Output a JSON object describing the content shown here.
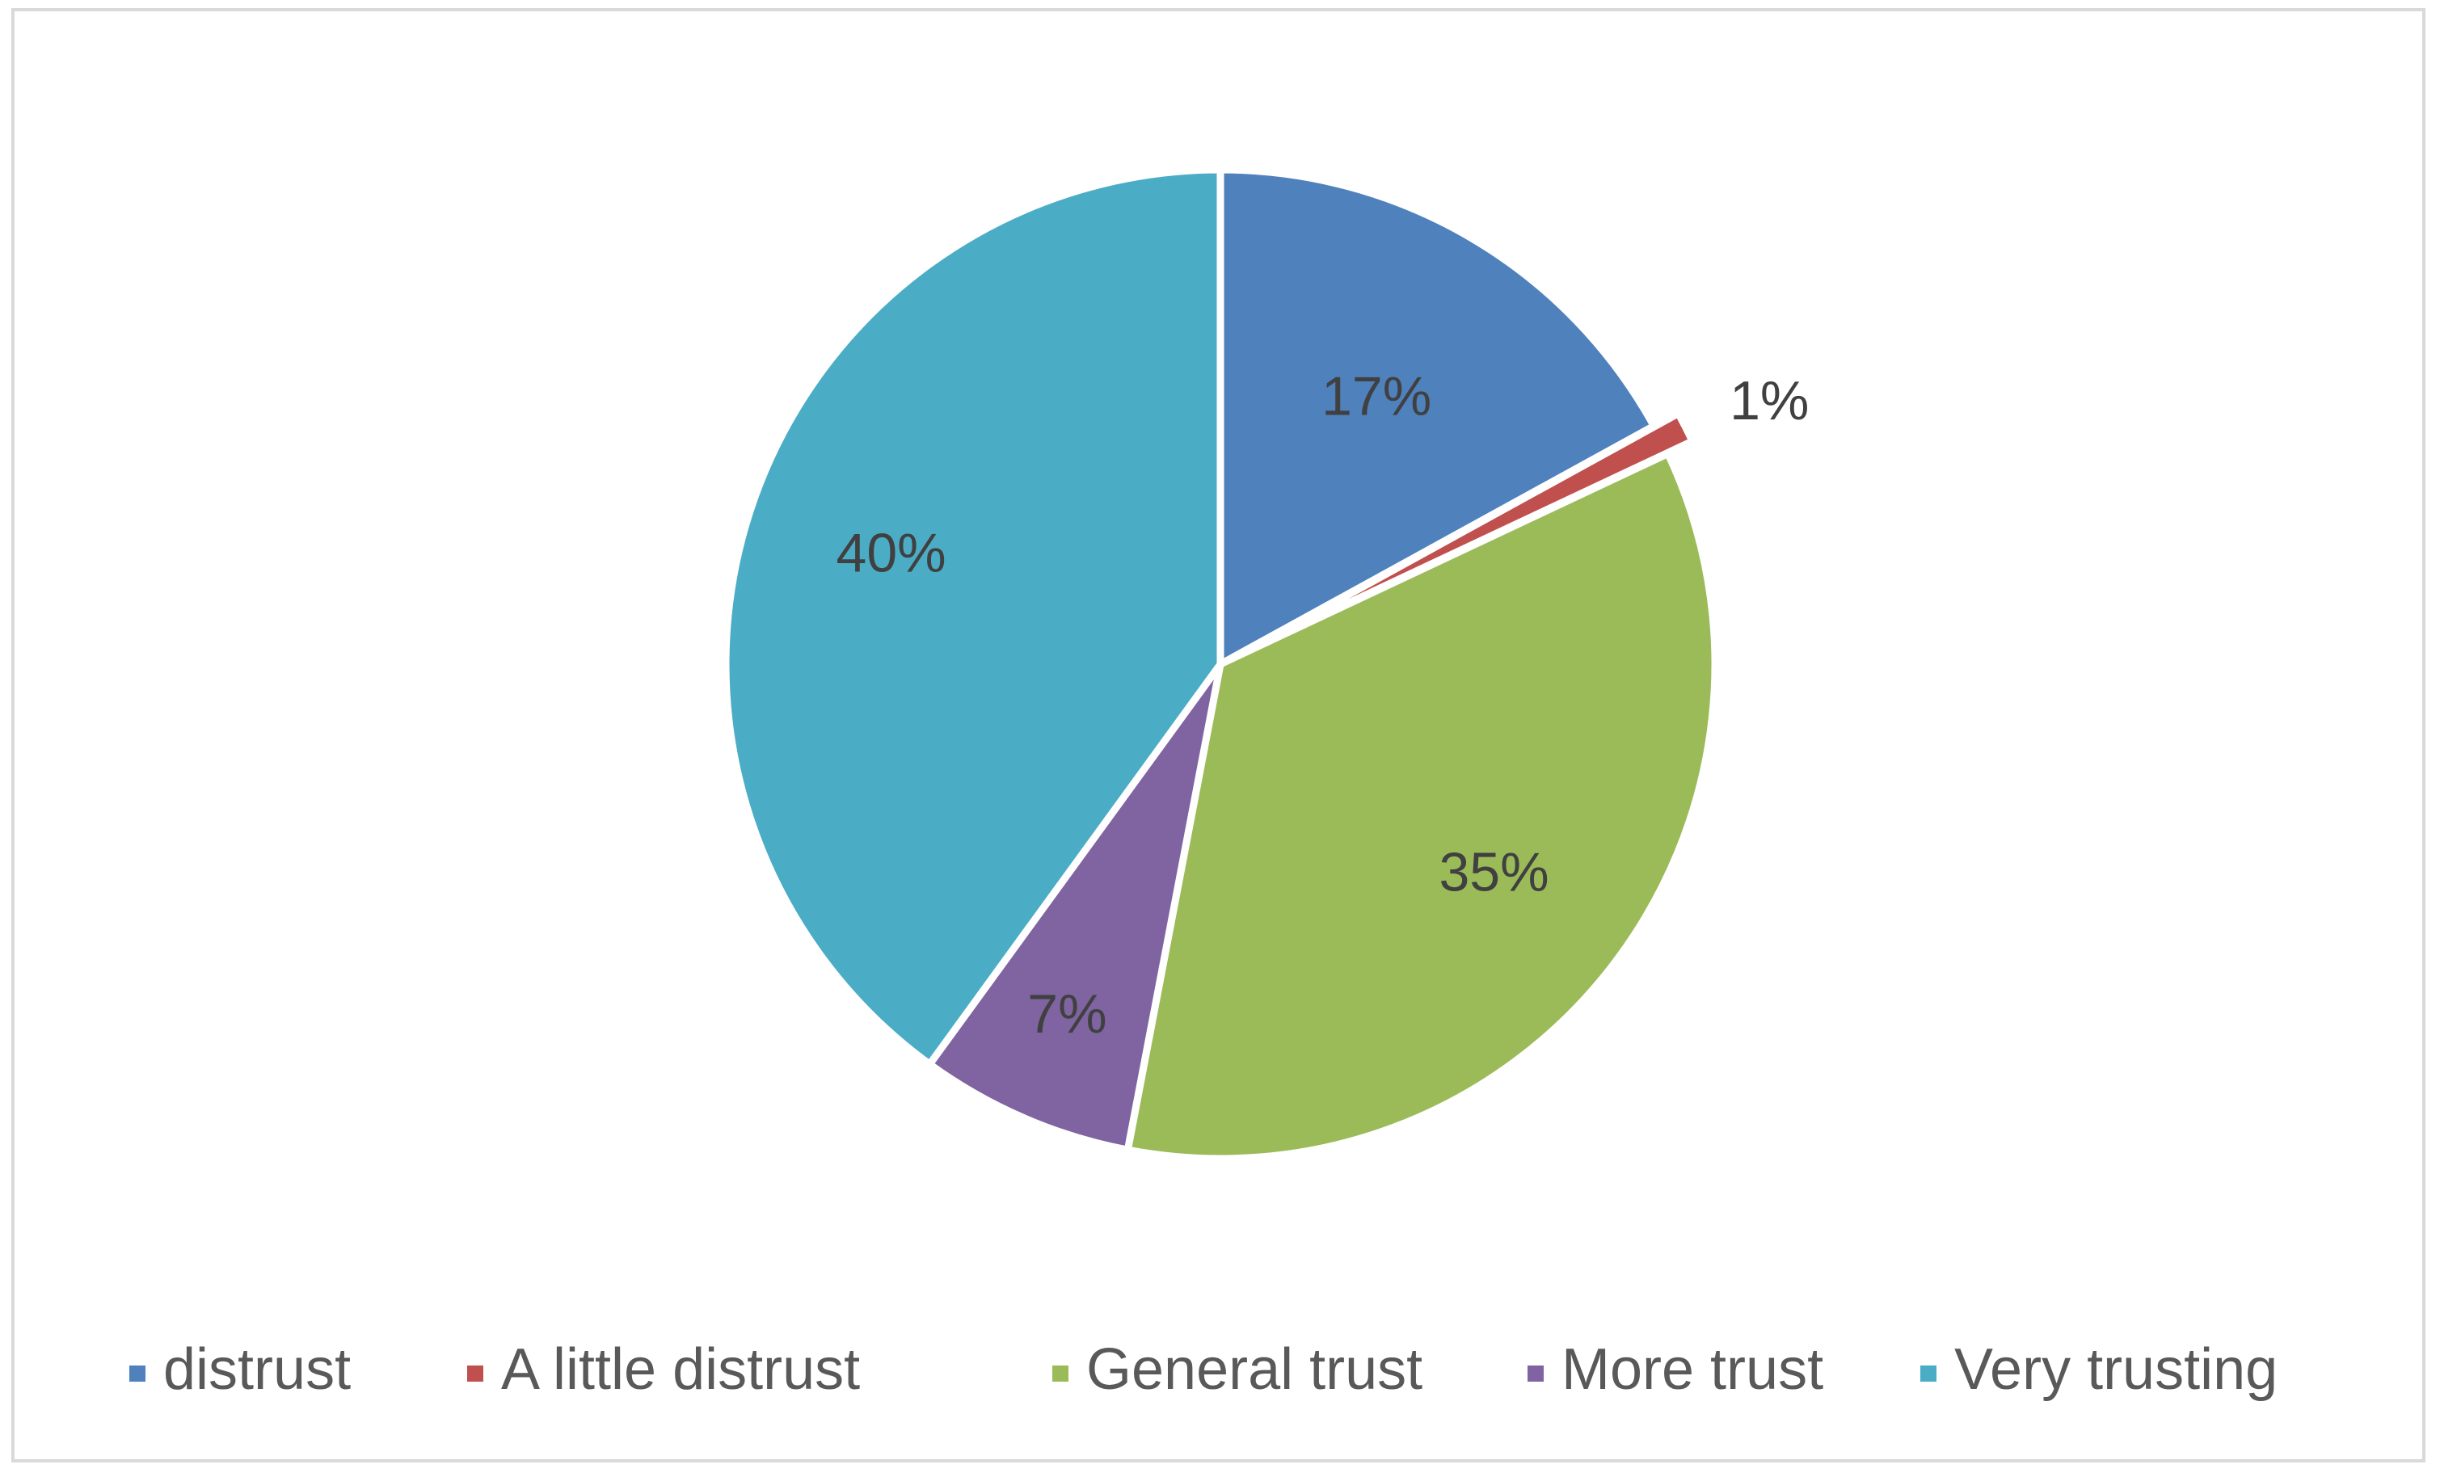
{
  "chart_data": {
    "type": "pie",
    "title": "",
    "categories": [
      "distrust",
      "A little distrust",
      "General trust",
      "More trust",
      "Very trusting"
    ],
    "values": [
      17,
      1,
      35,
      7,
      40
    ],
    "labels": [
      "17%",
      "1%",
      "35%",
      "7%",
      "40%"
    ],
    "colors": [
      "#4f81bd",
      "#c0504d",
      "#9bbb59",
      "#8064a2",
      "#4bacc6"
    ],
    "exploded": [
      "A little distrust"
    ],
    "legend_position": "bottom",
    "start_angle": "12 o'clock",
    "direction": "clockwise"
  }
}
